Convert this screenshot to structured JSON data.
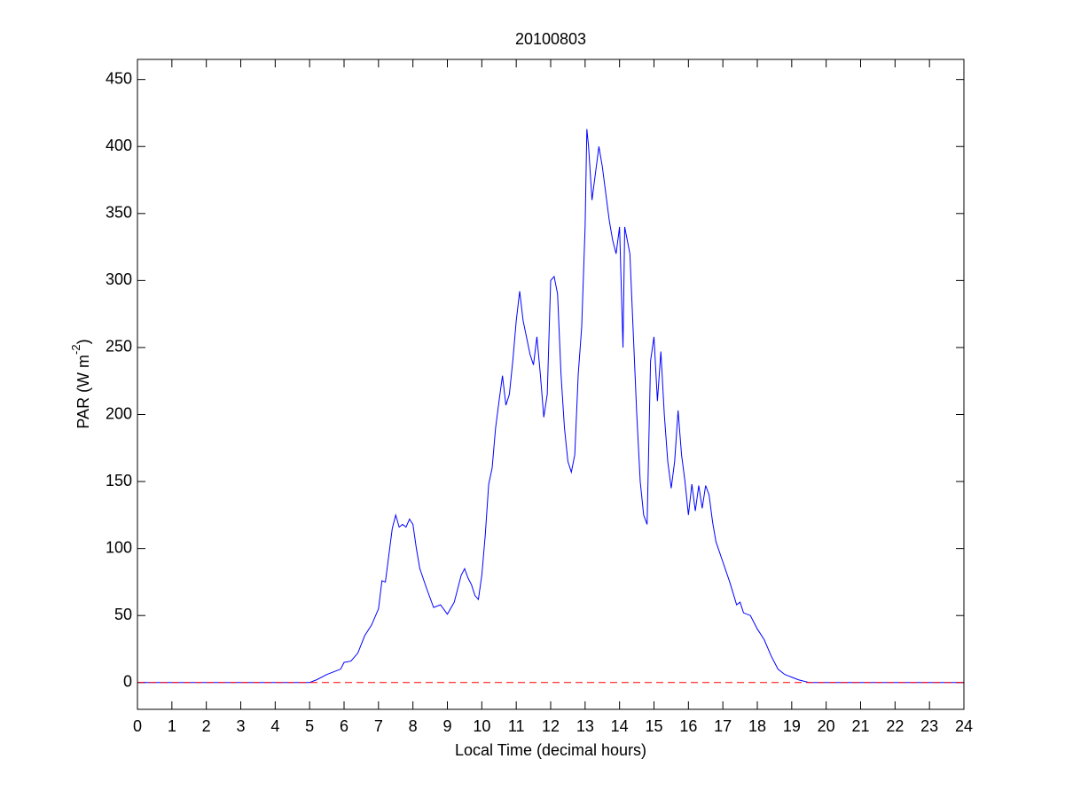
{
  "chart_data": {
    "type": "line",
    "title": "20100803",
    "xlabel": "Local Time (decimal hours)",
    "ylabel": {
      "text": "PAR (W m",
      "superscript": "-2",
      "suffix": ")"
    },
    "xlim": [
      0,
      24
    ],
    "xticks": [
      0,
      1,
      2,
      3,
      4,
      5,
      6,
      7,
      8,
      9,
      10,
      11,
      12,
      13,
      14,
      15,
      16,
      17,
      18,
      19,
      20,
      21,
      22,
      23,
      24
    ],
    "ylim": [
      -20,
      465
    ],
    "yticks": [
      0,
      50,
      100,
      150,
      200,
      250,
      300,
      350,
      400,
      450
    ],
    "grid": false,
    "reference_line": {
      "y": 0,
      "color": "#ff0000",
      "dashed": true
    },
    "series": [
      {
        "color": "#0000ff",
        "x": [
          0,
          5.0,
          5.2,
          5.5,
          5.7,
          5.9,
          6.0,
          6.2,
          6.4,
          6.6,
          6.8,
          7.0,
          7.1,
          7.2,
          7.3,
          7.4,
          7.5,
          7.6,
          7.7,
          7.8,
          7.9,
          8.0,
          8.1,
          8.2,
          8.4,
          8.6,
          8.8,
          9.0,
          9.2,
          9.4,
          9.5,
          9.6,
          9.7,
          9.8,
          9.9,
          10.0,
          10.1,
          10.2,
          10.3,
          10.4,
          10.5,
          10.6,
          10.7,
          10.8,
          10.9,
          11.0,
          11.1,
          11.2,
          11.4,
          11.5,
          11.6,
          11.7,
          11.8,
          11.9,
          12.0,
          12.1,
          12.2,
          12.3,
          12.4,
          12.5,
          12.6,
          12.7,
          12.8,
          12.9,
          13.0,
          13.05,
          13.1,
          13.2,
          13.3,
          13.4,
          13.5,
          13.6,
          13.7,
          13.8,
          13.9,
          14.0,
          14.1,
          14.15,
          14.3,
          14.4,
          14.5,
          14.6,
          14.7,
          14.8,
          14.9,
          15.0,
          15.1,
          15.2,
          15.3,
          15.4,
          15.5,
          15.6,
          15.7,
          15.8,
          15.9,
          16.0,
          16.1,
          16.2,
          16.3,
          16.4,
          16.5,
          16.6,
          16.7,
          16.8,
          17.0,
          17.2,
          17.4,
          17.5,
          17.6,
          17.8,
          18.0,
          18.2,
          18.4,
          18.6,
          18.8,
          19.0,
          19.2,
          19.5,
          24
        ],
        "values": [
          0,
          0,
          2,
          6,
          8,
          10,
          15,
          16,
          22,
          35,
          43,
          55,
          76,
          75,
          95,
          115,
          125,
          116,
          118,
          116,
          122,
          118,
          100,
          85,
          70,
          56,
          58,
          51,
          60,
          80,
          85,
          78,
          73,
          65,
          62,
          80,
          110,
          148,
          160,
          190,
          210,
          229,
          207,
          215,
          240,
          270,
          292,
          270,
          245,
          237,
          258,
          230,
          198,
          215,
          300,
          303,
          290,
          230,
          190,
          165,
          157,
          170,
          230,
          265,
          340,
          413,
          400,
          360,
          380,
          400,
          385,
          365,
          345,
          330,
          320,
          340,
          250,
          340,
          320,
          260,
          200,
          150,
          125,
          118,
          240,
          258,
          210,
          247,
          200,
          165,
          145,
          165,
          203,
          170,
          150,
          125,
          148,
          128,
          147,
          130,
          147,
          140,
          120,
          105,
          90,
          75,
          58,
          60,
          52,
          50,
          40,
          32,
          20,
          10,
          6,
          4,
          2,
          0,
          0
        ]
      }
    ]
  }
}
